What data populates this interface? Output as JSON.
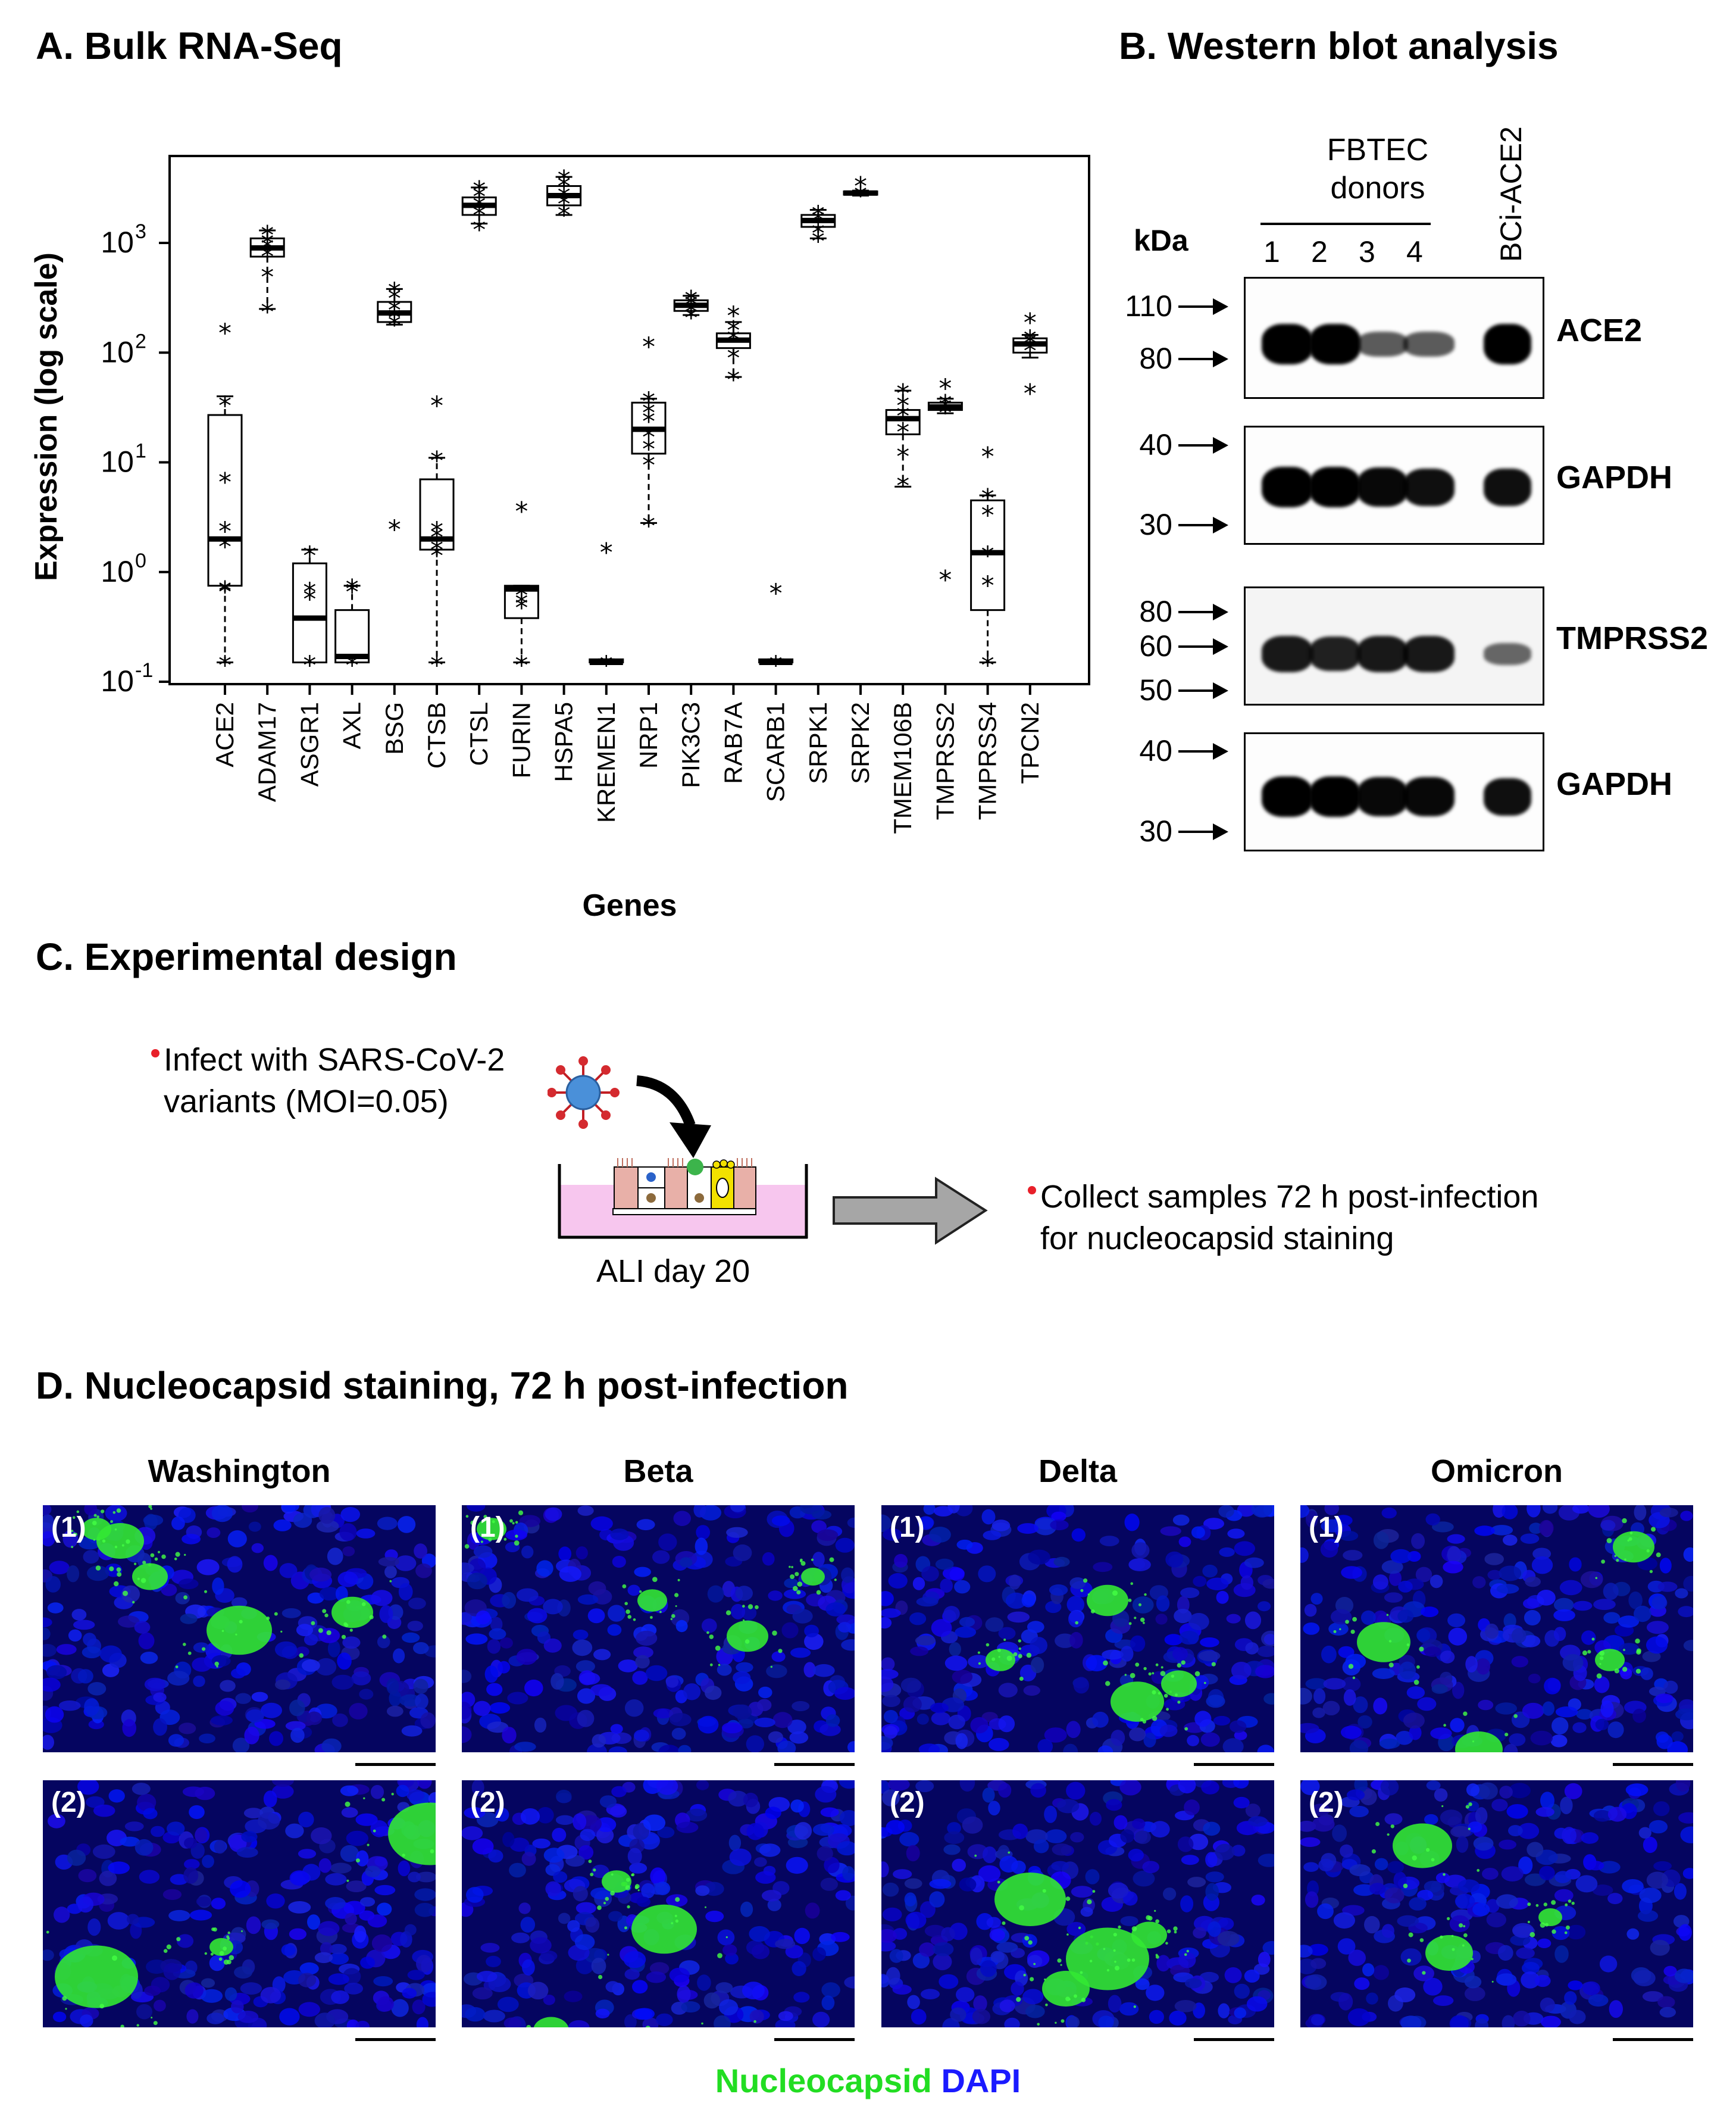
{
  "panels": {
    "a_title": "A. Bulk RNA-Seq",
    "b_title": "B. Western blot analysis",
    "c_title": "C. Experimental design",
    "d_title": "D. Nucleocapsid staining, 72 h post-infection"
  },
  "chart_data": {
    "type": "box",
    "title": "",
    "xlabel": "Genes",
    "ylabel": "Expression (log scale)",
    "yscale": "log",
    "ylim": [
      0.1,
      5000
    ],
    "yticks": [
      {
        "value": 0.1,
        "base": "10",
        "exp": "-1"
      },
      {
        "value": 1,
        "base": "10",
        "exp": "0"
      },
      {
        "value": 10,
        "base": "10",
        "exp": "1"
      },
      {
        "value": 100,
        "base": "10",
        "exp": "2"
      },
      {
        "value": 1000,
        "base": "10",
        "exp": "3"
      }
    ],
    "categories": [
      "ACE2",
      "ADAM17",
      "ASGR1",
      "AXL",
      "BSG",
      "CTSB",
      "CTSL",
      "FURIN",
      "HSPA5",
      "KREMEN1",
      "NRP1",
      "PIK3C3",
      "RAB7A",
      "SCARB1",
      "SRPK1",
      "SRPK2",
      "TMEM106B",
      "TMPRSS2",
      "TMPRSS4",
      "TPCN2"
    ],
    "boxes": [
      {
        "gene": "ACE2",
        "min": 0.15,
        "q1": 0.75,
        "median": 2.0,
        "q3": 27,
        "max": 40,
        "points": [
          0.15,
          0.7,
          0.72,
          1.8,
          2.5,
          7,
          35,
          160
        ]
      },
      {
        "gene": "ADAM17",
        "min": 250,
        "q1": 750,
        "median": 900,
        "q3": 1100,
        "max": 1300,
        "points": [
          250,
          520,
          800,
          950,
          1050,
          1250
        ]
      },
      {
        "gene": "ASGR1",
        "min": 0.15,
        "q1": 0.15,
        "median": 0.38,
        "q3": 1.2,
        "max": 1.6,
        "points": [
          0.15,
          0.6,
          0.7,
          1.5
        ]
      },
      {
        "gene": "AXL",
        "min": 0.15,
        "q1": 0.15,
        "median": 0.17,
        "q3": 0.45,
        "max": 0.75,
        "points": [
          0.15,
          0.7,
          0.75
        ]
      },
      {
        "gene": "BSG",
        "min": 180,
        "q1": 190,
        "median": 230,
        "q3": 290,
        "max": 380,
        "points": [
          2.6,
          190,
          220,
          260,
          330,
          380
        ]
      },
      {
        "gene": "CTSB",
        "min": 0.15,
        "q1": 1.6,
        "median": 2.0,
        "q3": 7,
        "max": 11,
        "points": [
          0.15,
          1.5,
          1.7,
          2.2,
          2.5,
          11,
          35
        ]
      },
      {
        "gene": "CTSL",
        "min": 1500,
        "q1": 1800,
        "median": 2200,
        "q3": 2600,
        "max": 3200,
        "points": [
          1400,
          1900,
          2300,
          2800,
          3200
        ]
      },
      {
        "gene": "FURIN",
        "min": 0.15,
        "q1": 0.38,
        "median": 0.7,
        "q3": 0.75,
        "max": 0.75,
        "points": [
          0.15,
          0.5,
          0.55,
          0.65,
          3.8
        ]
      },
      {
        "gene": "HSPA5",
        "min": 1800,
        "q1": 2200,
        "median": 2700,
        "q3": 3300,
        "max": 4000,
        "points": [
          1900,
          2400,
          2800,
          3500,
          4000
        ]
      },
      {
        "gene": "KREMEN1",
        "min": 0.15,
        "q1": 0.15,
        "median": 0.15,
        "q3": 0.16,
        "max": 0.16,
        "points": [
          0.15,
          1.6
        ]
      },
      {
        "gene": "NRP1",
        "min": 2.8,
        "q1": 12,
        "median": 20,
        "q3": 35,
        "max": 38,
        "points": [
          2.8,
          10,
          14,
          18,
          25,
          30,
          38,
          120
        ]
      },
      {
        "gene": "PIK3C3",
        "min": 220,
        "q1": 240,
        "median": 270,
        "q3": 300,
        "max": 330,
        "points": [
          220,
          250,
          290,
          320
        ]
      },
      {
        "gene": "RAB7A",
        "min": 60,
        "q1": 110,
        "median": 130,
        "q3": 150,
        "max": 190,
        "points": [
          60,
          95,
          140,
          170,
          230
        ]
      },
      {
        "gene": "SCARB1",
        "min": 0.15,
        "q1": 0.15,
        "median": 0.15,
        "q3": 0.16,
        "max": 0.16,
        "points": [
          0.15,
          0.68
        ]
      },
      {
        "gene": "SRPK1",
        "min": 1100,
        "q1": 1400,
        "median": 1600,
        "q3": 1800,
        "max": 2000,
        "points": [
          1100,
          1300,
          1700,
          1900
        ]
      },
      {
        "gene": "SRPK2",
        "min": 2700,
        "q1": 2750,
        "median": 2850,
        "q3": 2950,
        "max": 3000,
        "points": [
          2850,
          3500
        ]
      },
      {
        "gene": "TMEM106B",
        "min": 6,
        "q1": 18,
        "median": 25,
        "q3": 30,
        "max": 45,
        "points": [
          6.5,
          12,
          20,
          28,
          35,
          45
        ]
      },
      {
        "gene": "TMPRSS2",
        "min": 28,
        "q1": 30,
        "median": 32,
        "q3": 35,
        "max": 38,
        "points": [
          30,
          33,
          36,
          50,
          0.9
        ]
      },
      {
        "gene": "TMPRSS4",
        "min": 0.15,
        "q1": 0.45,
        "median": 1.5,
        "q3": 4.5,
        "max": 5,
        "points": [
          0.15,
          0.8,
          1.5,
          3.5,
          5,
          12
        ]
      },
      {
        "gene": "TPCN2",
        "min": 90,
        "q1": 100,
        "median": 120,
        "q3": 135,
        "max": 145,
        "points": [
          45,
          110,
          130,
          140,
          200
        ]
      }
    ]
  },
  "western": {
    "group_label_line1": "FBTEC",
    "group_label_line2": "donors",
    "lanes": [
      "1",
      "2",
      "3",
      "4"
    ],
    "bci_label": "BCi-ACE2",
    "kda_label": "kDa",
    "blots": [
      {
        "protein": "ACE2",
        "markers": [
          "110",
          "80"
        ],
        "band_intensity": [
          1.0,
          1.0,
          0.45,
          0.45,
          1.0
        ]
      },
      {
        "protein": "GAPDH",
        "markers": [
          "40",
          "30"
        ],
        "band_intensity": [
          1.0,
          1.0,
          0.95,
          0.9,
          0.9
        ]
      },
      {
        "protein": "TMPRSS2",
        "markers": [
          "80",
          "60",
          "50"
        ],
        "band_intensity": [
          0.85,
          0.8,
          0.85,
          0.85,
          0.35
        ]
      },
      {
        "protein": "GAPDH",
        "markers": [
          "40",
          "30"
        ],
        "band_intensity": [
          1.0,
          1.0,
          0.95,
          0.95,
          0.9
        ]
      }
    ]
  },
  "design": {
    "infect_line1": "Infect with SARS-CoV-2",
    "infect_line2": "variants (MOI=0.05)",
    "ali_label": "ALI day 20",
    "collect_line1": "Collect samples 72 h post-infection",
    "collect_line2": "for nucleocapsid staining",
    "dot_color": "#e8202a",
    "arrow_color": "#a6a6a6",
    "well_color": "#f7c6ee"
  },
  "staining": {
    "variants": [
      "Washington",
      "Beta",
      "Delta",
      "Omicron"
    ],
    "row_labels": [
      "(1)",
      "(2)"
    ],
    "legend_nucleocapsid": "Nucleocapsid",
    "legend_dapi": "DAPI",
    "nucleocapsid_color": "#22dd22",
    "dapi_color": "#1a1aff"
  }
}
